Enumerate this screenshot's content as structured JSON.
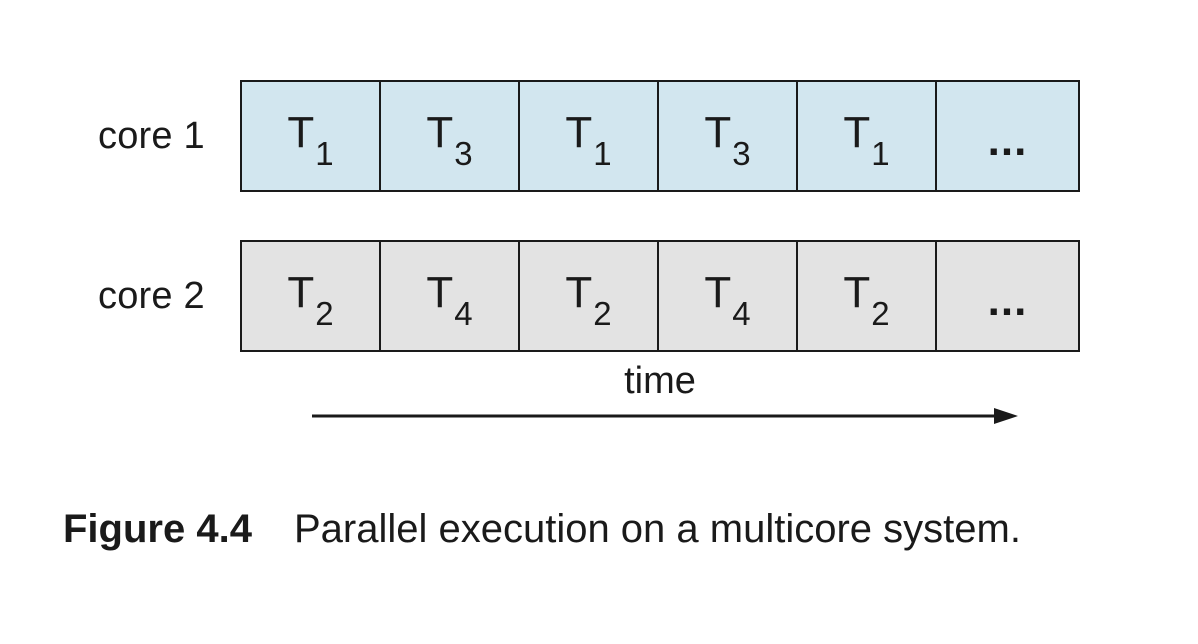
{
  "colors": {
    "core1_fill": "#d2e6ef",
    "core2_fill": "#e3e3e3",
    "stroke": "#1a1a1a"
  },
  "rows": [
    {
      "label": "core 1",
      "cells": [
        {
          "letter": "T",
          "sub": "1"
        },
        {
          "letter": "T",
          "sub": "3"
        },
        {
          "letter": "T",
          "sub": "1"
        },
        {
          "letter": "T",
          "sub": "3"
        },
        {
          "letter": "T",
          "sub": "1"
        },
        {
          "ellipsis": "..."
        }
      ]
    },
    {
      "label": "core 2",
      "cells": [
        {
          "letter": "T",
          "sub": "2"
        },
        {
          "letter": "T",
          "sub": "4"
        },
        {
          "letter": "T",
          "sub": "2"
        },
        {
          "letter": "T",
          "sub": "4"
        },
        {
          "letter": "T",
          "sub": "2"
        },
        {
          "ellipsis": "..."
        }
      ]
    }
  ],
  "axis": {
    "label": "time"
  },
  "caption": {
    "number": "Figure 4.4",
    "text": "Parallel execution on a multicore system."
  }
}
